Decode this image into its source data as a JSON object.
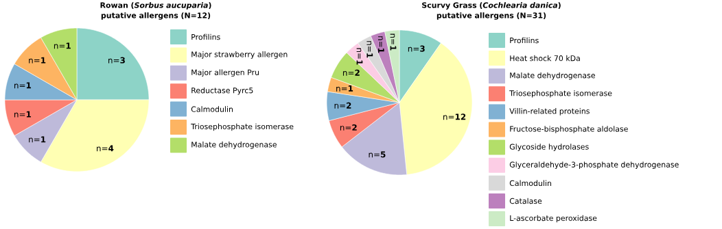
{
  "chart_data": [
    {
      "type": "pie",
      "title": "Rowan (*Sorbus aucuparia*) putative allergens (N=12)",
      "categories": [
        "Profilins",
        "Major strawberry allergen",
        "Major allergen Pru",
        "Reductase Pyrc5",
        "Calmodulin",
        "Triosephosphate isomerase",
        "Malate dehydrogenase"
      ],
      "values": [
        3,
        4,
        1,
        1,
        1,
        1,
        1
      ],
      "value_labels": [
        "n=**3**",
        "n=**4**",
        "n=**1**",
        "n=**1**",
        "n=**1**",
        "n=**1**",
        "n=**1**"
      ],
      "colors": [
        "#8dd3c7",
        "#ffffb3",
        "#bebada",
        "#fb8072",
        "#80b1d3",
        "#fdb462",
        "#b3de69"
      ],
      "legend": "right"
    },
    {
      "type": "pie",
      "title": "Scurvy Grass (*Cochlearia danica*) putative allergens (N=31)",
      "categories": [
        "Profilins",
        "Heat shock 70 kDa",
        "Malate dehydrogenase",
        "Triosephosphate isomerase",
        "Villin-related proteins",
        "Fructose-bisphosphate aldolase",
        "Glycoside hydrolases",
        "Glyceraldehyde-3-phosphate dehydrogenase",
        "Calmodulin",
        "Catalase",
        "L-ascorbate peroxidase"
      ],
      "values": [
        3,
        12,
        5,
        2,
        2,
        1,
        2,
        1,
        1,
        1,
        1
      ],
      "value_labels": [
        "n=**3**",
        "n=**12**",
        "n=**5**",
        "n=**2**",
        "n=**2**",
        "n=**1**",
        "n=**2**",
        "n=**1**",
        "n=**1**",
        "n=**1**",
        "n=**1**"
      ],
      "colors": [
        "#8dd3c7",
        "#ffffb3",
        "#bebada",
        "#fb8072",
        "#80b1d3",
        "#fdb462",
        "#b3de69",
        "#fccde5",
        "#d9d9d9",
        "#bc80bd",
        "#ccebc5"
      ],
      "legend": "right"
    }
  ]
}
